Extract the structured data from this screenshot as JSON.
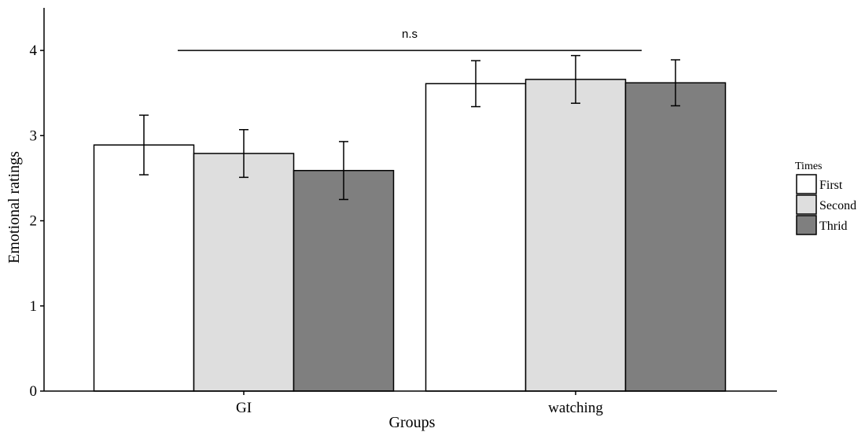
{
  "chart_data": {
    "type": "bar",
    "xlabel": "Groups",
    "ylabel": "Emotional ratings",
    "ylim": [
      0,
      4.5
    ],
    "yticks": [
      0,
      1,
      2,
      3,
      4
    ],
    "categories": [
      "GI",
      "watching"
    ],
    "series": [
      {
        "name": "First",
        "color": "#ffffff",
        "values": [
          2.89,
          3.61
        ],
        "errors": [
          0.35,
          0.27
        ]
      },
      {
        "name": "Second",
        "color": "#dedede",
        "values": [
          2.79,
          3.66
        ],
        "errors": [
          0.28,
          0.28
        ]
      },
      {
        "name": "Thrid",
        "color": "#7f7f7f",
        "values": [
          2.59,
          3.62
        ],
        "errors": [
          0.34,
          0.27
        ]
      }
    ],
    "legend": {
      "title": "Times",
      "position": "right"
    },
    "annotation": {
      "text": "n.s",
      "y": 4.0
    },
    "grid": false
  }
}
